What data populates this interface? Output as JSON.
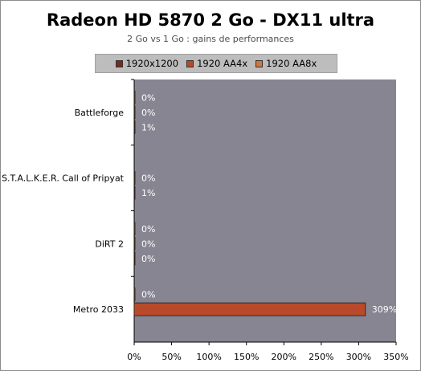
{
  "chart_data": {
    "type": "bar",
    "orientation": "horizontal",
    "title": "Radeon HD 5870 2 Go - DX11 ultra",
    "subtitle": "2 Go vs 1 Go : gains de performances",
    "categories": [
      "Battleforge",
      "S.T.A.L.K.E.R. Call of Pripyat",
      "DiRT 2",
      "Metro 2033"
    ],
    "series": [
      {
        "name": "1920x1200",
        "color": "#7a2a1a",
        "values": [
          1,
          1,
          0,
          null
        ],
        "labels": [
          "1%",
          "1%",
          "0%",
          ""
        ]
      },
      {
        "name": "1920 AA4x",
        "color": "#b84a2a",
        "values": [
          0,
          0,
          0,
          309
        ],
        "labels": [
          "0%",
          "0%",
          "0%",
          "309%"
        ]
      },
      {
        "name": "1920 AA8x",
        "color": "#d2763c",
        "values": [
          0,
          null,
          0,
          0
        ],
        "labels": [
          "0%",
          "",
          "0%",
          "0%"
        ]
      }
    ],
    "xlim": [
      0,
      350
    ],
    "xticks": [
      "0%",
      "50%",
      "100%",
      "150%",
      "200%",
      "250%",
      "300%",
      "350%"
    ],
    "plot_background": "#868591",
    "legend_position": "top"
  }
}
